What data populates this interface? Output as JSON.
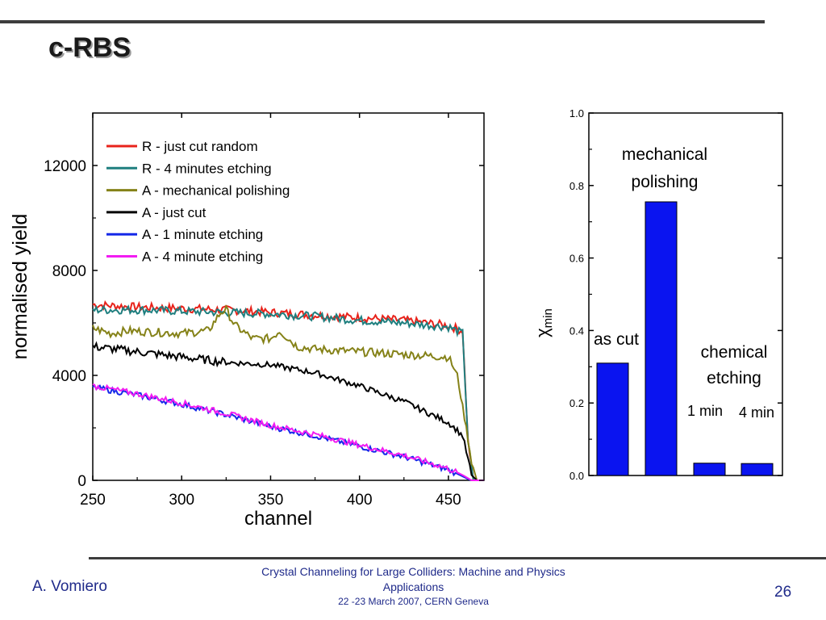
{
  "slide": {
    "title": "c-RBS",
    "author": "A. Vomiero",
    "conference_line1": "Crystal Channeling for Large Colliders: Machine and Physics Applications",
    "conference_line2": "22 -23  March 2007, CERN Geneva",
    "page_number": "26"
  },
  "chart_data": [
    {
      "type": "line",
      "title": "",
      "xlabel": "channel",
      "ylabel": "normalised yield",
      "xlim": [
        250,
        470
      ],
      "ylim": [
        0,
        14000
      ],
      "x_ticks": [
        "250",
        "300",
        "350",
        "400",
        "450"
      ],
      "y_ticks": [
        "0",
        "4000",
        "8000",
        "12000"
      ],
      "legend_position": "top-left",
      "series": [
        {
          "name": "R - just cut random",
          "color": "#e8231b",
          "x": [
            250,
            275,
            300,
            325,
            350,
            375,
            400,
            425,
            450,
            458,
            461,
            464,
            470
          ],
          "y": [
            6700,
            6600,
            6550,
            6500,
            6400,
            6300,
            6200,
            6100,
            5900,
            5700,
            1500,
            0,
            0
          ]
        },
        {
          "name": "R - 4 minutes etching",
          "color": "#1f7f7f",
          "x": [
            250,
            275,
            300,
            325,
            350,
            375,
            400,
            425,
            450,
            458,
            461,
            464,
            470
          ],
          "y": [
            6500,
            6500,
            6450,
            6400,
            6350,
            6250,
            6100,
            6000,
            5850,
            5600,
            1500,
            0,
            0
          ]
        },
        {
          "name": "A - mechanical polishing",
          "color": "#858218",
          "x": [
            250,
            260,
            270,
            300,
            315,
            322,
            325,
            330,
            340,
            350,
            355,
            365,
            375,
            400,
            425,
            450,
            455,
            460,
            463,
            466,
            470
          ],
          "y": [
            5800,
            5600,
            5700,
            5600,
            5700,
            6400,
            6500,
            5900,
            5400,
            5400,
            5700,
            5100,
            5000,
            4900,
            4800,
            4700,
            4000,
            2000,
            700,
            0,
            0
          ]
        },
        {
          "name": "A - just cut",
          "color": "#000000",
          "x": [
            250,
            275,
            300,
            325,
            350,
            375,
            400,
            425,
            450,
            455,
            458,
            461,
            463,
            466,
            470
          ],
          "y": [
            5100,
            4900,
            4700,
            4500,
            4400,
            4100,
            3600,
            3000,
            2200,
            1900,
            1700,
            800,
            200,
            0,
            0
          ]
        },
        {
          "name": "A - 1 minute etching",
          "color": "#1428e8",
          "x": [
            250,
            275,
            300,
            325,
            350,
            375,
            400,
            425,
            450,
            455,
            458,
            461,
            463,
            470
          ],
          "y": [
            3550,
            3250,
            2900,
            2500,
            2050,
            1700,
            1300,
            900,
            400,
            250,
            150,
            50,
            0,
            0
          ]
        },
        {
          "name": "A - 4 minute etching",
          "color": "#f21cf2",
          "x": [
            250,
            275,
            300,
            325,
            350,
            375,
            400,
            425,
            450,
            455,
            458,
            461,
            463,
            470
          ],
          "y": [
            3600,
            3300,
            2950,
            2550,
            2100,
            1750,
            1350,
            950,
            450,
            300,
            200,
            80,
            0,
            0
          ]
        }
      ]
    },
    {
      "type": "bar",
      "title": "",
      "xlabel": "",
      "ylabel_main": "χ",
      "ylabel_sub": "min",
      "ylim": [
        0,
        1.0
      ],
      "y_ticks": [
        "0.0",
        "0.2",
        "0.4",
        "0.6",
        "0.8",
        "1.0"
      ],
      "bar_color": "#0a14f0",
      "values": [
        0.31,
        0.755,
        0.034,
        0.033
      ],
      "annotations": [
        "as cut",
        "mechanical polishing",
        "chemical etching",
        "1 min",
        "4 min"
      ]
    }
  ]
}
